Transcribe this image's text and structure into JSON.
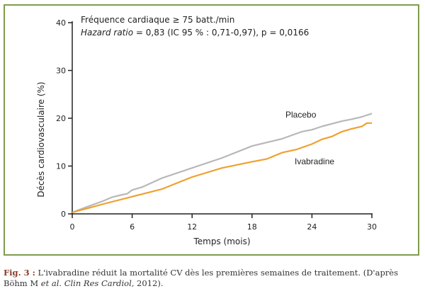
{
  "chart_data": {
    "type": "line",
    "title_line1": "Fréquence cardiaque ≥ 75 batt./min",
    "title_line2_italic": "Hazard ratio",
    "title_line2_rest": " = 0,83 (IC 95 % : 0,71-0,97), p = 0,0166",
    "xlabel": "Temps (mois)",
    "ylabel": "Décès cardiovasculaire (%)",
    "xlim": [
      0,
      30
    ],
    "ylim": [
      0,
      40
    ],
    "xticks": [
      "0",
      "6",
      "12",
      "18",
      "24",
      "30"
    ],
    "yticks": [
      "0",
      "10",
      "20",
      "30",
      "40"
    ],
    "grid": false,
    "series": [
      {
        "name": "Placebo",
        "color": "#b8b8b8",
        "x": [
          0,
          1.5,
          3,
          4,
          5,
          5.5,
          6,
          7,
          9,
          12,
          15,
          18,
          20,
          21,
          23,
          24,
          25,
          27,
          28,
          29,
          30
        ],
        "y": [
          0.3,
          1.5,
          2.6,
          3.5,
          4,
          4.2,
          5,
          5.6,
          7.5,
          9.6,
          11.7,
          14.2,
          15.2,
          15.7,
          17.2,
          17.6,
          18.3,
          19.4,
          19.8,
          20.3,
          21
        ]
      },
      {
        "name": "Ivabradine",
        "color": "#f0a030",
        "x": [
          0,
          3,
          6,
          9,
          12,
          15,
          18,
          19.5,
          21,
          22.5,
          24,
          25,
          26,
          27,
          28,
          29,
          29.5,
          30
        ],
        "y": [
          0.3,
          2,
          3.6,
          5.2,
          7.7,
          9.6,
          10.9,
          11.5,
          12.8,
          13.5,
          14.6,
          15.6,
          16.2,
          17.2,
          17.8,
          18.3,
          19,
          19
        ]
      }
    ]
  },
  "caption": {
    "label": "Fig. 3 :",
    "text": " L'ivabradine réduit la mortalité CV dès les premières semaines de traitement. (D'après Böhm M ",
    "italic": "et al. Clin Res Cardiol,",
    "end": " 2012)."
  },
  "colors": {
    "frame": "#7f9c4c",
    "placebo": "#b8b8b8",
    "ivabradine": "#f0a030"
  }
}
